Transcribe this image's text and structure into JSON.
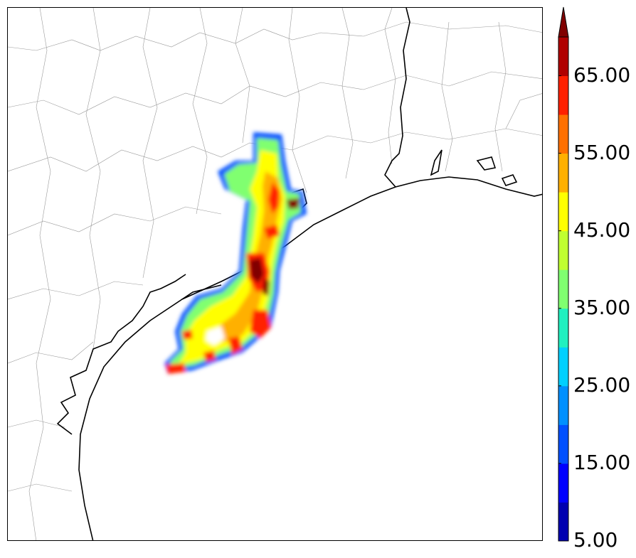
{
  "map": {
    "feature": "radar reflectivity over Texas Gulf coast",
    "field_levels": [
      5,
      10,
      15,
      20,
      25,
      30,
      35,
      40,
      45,
      50,
      55,
      60,
      65,
      70
    ]
  },
  "colorbar": {
    "min": 5,
    "max": 70,
    "extend": "max",
    "colors": [
      "#0000b0",
      "#0000ff",
      "#0050ff",
      "#0090ff",
      "#00d0ff",
      "#20f0c0",
      "#80ff70",
      "#c0ff30",
      "#ffff00",
      "#ffb000",
      "#ff7000",
      "#ff2000",
      "#b00000",
      "#800000"
    ],
    "tick_labels": [
      "5.00",
      "15.00",
      "25.00",
      "35.00",
      "45.00",
      "55.00",
      "65.00"
    ]
  }
}
